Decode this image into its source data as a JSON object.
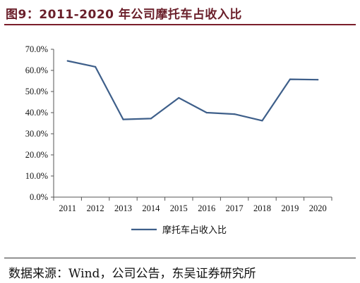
{
  "figure": {
    "title": "图9：2011-2020 年公司摩托车占收入比",
    "source": "数据来源：Wind，公司公告，东吴证券研究所"
  },
  "colors": {
    "line": "#3e5f8a",
    "axis": "#555555",
    "title": "#6a1f2a"
  },
  "chart_data": {
    "type": "line",
    "categories": [
      "2011",
      "2012",
      "2013",
      "2014",
      "2015",
      "2016",
      "2017",
      "2018",
      "2019",
      "2020"
    ],
    "series": [
      {
        "name": "摩托车占收入比",
        "values": [
          64.5,
          61.7,
          36.8,
          37.2,
          47.0,
          40.0,
          39.3,
          36.2,
          55.8,
          55.6
        ]
      }
    ],
    "ylim": [
      0,
      70
    ],
    "yticks": [
      "0.0%",
      "10.0%",
      "20.0%",
      "30.0%",
      "40.0%",
      "50.0%",
      "60.0%",
      "70.0%"
    ],
    "grid": false,
    "legend": "bottom"
  }
}
